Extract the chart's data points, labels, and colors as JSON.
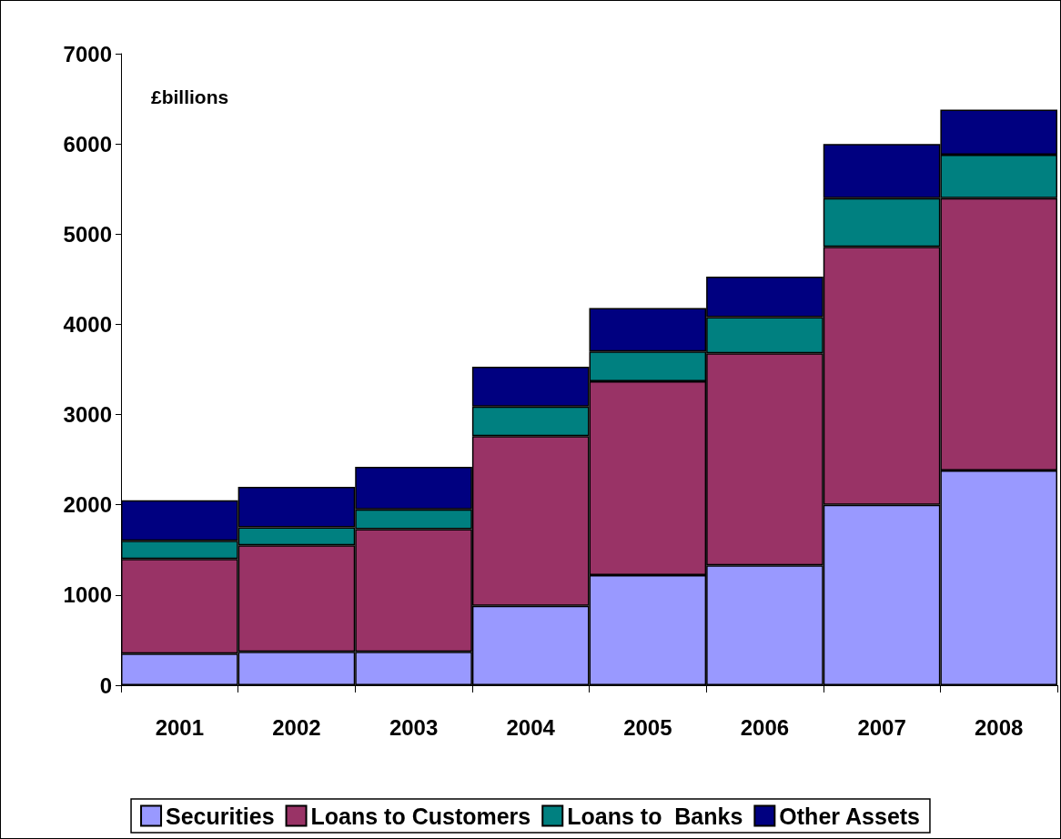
{
  "chart_data": {
    "type": "bar",
    "stacked": true,
    "categories": [
      "2001",
      "2002",
      "2003",
      "2004",
      "2005",
      "2006",
      "2007",
      "2008"
    ],
    "series": [
      {
        "name": "Securities",
        "color": "#9999ff",
        "values": [
          350,
          370,
          370,
          880,
          1220,
          1330,
          2000,
          2380
        ]
      },
      {
        "name": "Loans to Customers",
        "color": "#993366",
        "values": [
          1050,
          1180,
          1360,
          1880,
          2150,
          2350,
          2860,
          3020
        ]
      },
      {
        "name": "Loans to  Banks",
        "color": "#008080",
        "values": [
          200,
          200,
          220,
          330,
          330,
          400,
          540,
          480
        ]
      },
      {
        "name": "Other Assets",
        "color": "#000080",
        "values": [
          450,
          450,
          470,
          440,
          480,
          450,
          600,
          500
        ]
      }
    ],
    "ylim": [
      0,
      7000
    ],
    "yticks": [
      0,
      1000,
      2000,
      3000,
      4000,
      5000,
      6000,
      7000
    ],
    "grid": false,
    "legend": "bottom",
    "annotations": [
      "£billions"
    ]
  }
}
